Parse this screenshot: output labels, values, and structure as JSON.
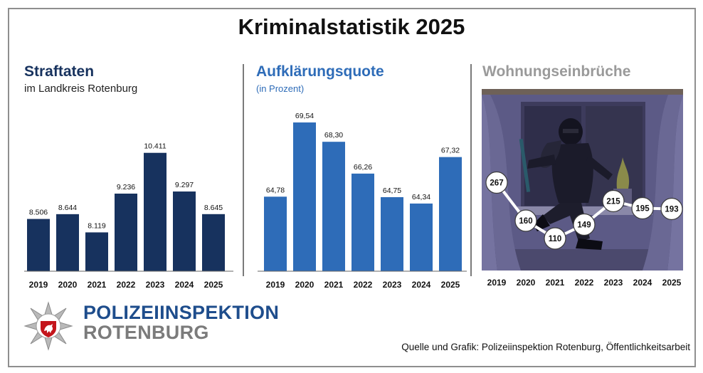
{
  "title": "Kriminalstatistik 2025",
  "chart_data": [
    {
      "type": "bar",
      "title": "Straftaten",
      "subtitle": "im Landkreis Rotenburg",
      "color": "#17325e",
      "categories": [
        "2019",
        "2020",
        "2021",
        "2022",
        "2023",
        "2024",
        "2025"
      ],
      "values": [
        8506,
        8644,
        8119,
        9236,
        10411,
        9297,
        8645
      ],
      "labels": [
        "8.506",
        "8.644",
        "8.119",
        "9.236",
        "10.411",
        "9.297",
        "8.645"
      ],
      "ylim": [
        7000,
        11000
      ]
    },
    {
      "type": "bar",
      "title": "Aufklärungsquote",
      "subtitle": "(in Prozent)",
      "color": "#2e6cb8",
      "categories": [
        "2019",
        "2020",
        "2021",
        "2022",
        "2023",
        "2024",
        "2025"
      ],
      "values": [
        64.78,
        69.54,
        68.3,
        66.26,
        64.75,
        64.34,
        67.32
      ],
      "labels": [
        "64,78",
        "69,54",
        "68,30",
        "66,26",
        "64,75",
        "64,34",
        "67,32"
      ],
      "ylim": [
        60,
        70.5
      ]
    },
    {
      "type": "line",
      "title": "Wohnungseinbrüche",
      "color": "#9a9a9a",
      "categories": [
        "2019",
        "2020",
        "2021",
        "2022",
        "2023",
        "2024",
        "2025"
      ],
      "values": [
        267,
        160,
        110,
        149,
        215,
        195,
        193
      ],
      "labels": [
        "267",
        "160",
        "110",
        "149",
        "215",
        "195",
        "193"
      ]
    }
  ],
  "footer": {
    "org_line1": "POLIZEIINSPEKTION",
    "org_line2": "ROTENBURG",
    "source": "Quelle und Grafik: Polizeiinspektion Rotenburg, Öffentlichkeitsarbeit"
  },
  "colors": {
    "navy": "#17325e",
    "blue": "#2e6cb8",
    "gray": "#9a9a9a",
    "org_blue": "#1e4d8c",
    "org_gray": "#7b7b7b"
  },
  "icons": {
    "badge": "police-star-badge-icon",
    "burglar": "burglar-illustration"
  }
}
